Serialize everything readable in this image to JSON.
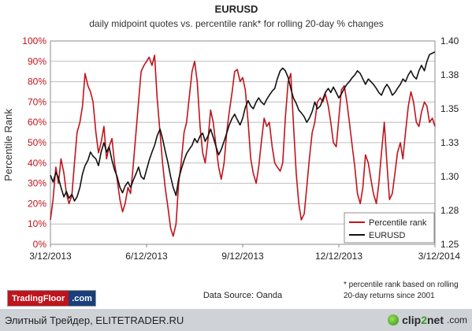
{
  "chart_data": {
    "type": "line",
    "title": "EURUSD",
    "subtitle": "daily midpoint quotes vs. percentile rank* for rolling 20-day % changes",
    "ylabel_left": "Percentile Rank",
    "left_axis": {
      "ylim": [
        0,
        100
      ],
      "ticks": [
        "0%",
        "10%",
        "20%",
        "30%",
        "40%",
        "50%",
        "60%",
        "70%",
        "80%",
        "90%",
        "100%"
      ]
    },
    "right_axis": {
      "ylim": [
        1.25,
        1.4
      ],
      "ticks": [
        "1.25",
        "1.28",
        "1.30",
        "1.33",
        "1.35",
        "1.38",
        "1.40"
      ],
      "tick_values": [
        1.25,
        1.275,
        1.3,
        1.325,
        1.35,
        1.375,
        1.4
      ]
    },
    "x_ticks": [
      "3/12/2013",
      "6/12/2013",
      "9/12/2013",
      "12/12/2013",
      "3/12/2014"
    ],
    "x_tick_months": [
      0,
      3,
      6,
      9,
      12
    ],
    "xlim_months": [
      0,
      12
    ],
    "grid": "horizontal",
    "legend_position": "bottom-right",
    "series": [
      {
        "name": "Percentile rank",
        "axis": "left",
        "color": "#c0141c",
        "points": [
          [
            0.0,
            12
          ],
          [
            0.08,
            22
          ],
          [
            0.17,
            38
          ],
          [
            0.25,
            30
          ],
          [
            0.33,
            42
          ],
          [
            0.42,
            35
          ],
          [
            0.5,
            25
          ],
          [
            0.58,
            20
          ],
          [
            0.67,
            24
          ],
          [
            0.75,
            40
          ],
          [
            0.83,
            55
          ],
          [
            0.92,
            60
          ],
          [
            1.0,
            68
          ],
          [
            1.08,
            84
          ],
          [
            1.17,
            78
          ],
          [
            1.25,
            75
          ],
          [
            1.33,
            70
          ],
          [
            1.42,
            55
          ],
          [
            1.5,
            45
          ],
          [
            1.58,
            50
          ],
          [
            1.67,
            58
          ],
          [
            1.75,
            42
          ],
          [
            1.83,
            48
          ],
          [
            1.92,
            52
          ],
          [
            2.0,
            40
          ],
          [
            2.08,
            32
          ],
          [
            2.17,
            22
          ],
          [
            2.25,
            16
          ],
          [
            2.33,
            20
          ],
          [
            2.42,
            28
          ],
          [
            2.5,
            25
          ],
          [
            2.58,
            38
          ],
          [
            2.67,
            55
          ],
          [
            2.75,
            70
          ],
          [
            2.83,
            85
          ],
          [
            2.92,
            88
          ],
          [
            3.0,
            90
          ],
          [
            3.08,
            92
          ],
          [
            3.17,
            88
          ],
          [
            3.25,
            93
          ],
          [
            3.33,
            72
          ],
          [
            3.42,
            55
          ],
          [
            3.5,
            40
          ],
          [
            3.58,
            28
          ],
          [
            3.67,
            18
          ],
          [
            3.75,
            8
          ],
          [
            3.83,
            4
          ],
          [
            3.92,
            10
          ],
          [
            4.0,
            30
          ],
          [
            4.08,
            40
          ],
          [
            4.17,
            55
          ],
          [
            4.25,
            60
          ],
          [
            4.33,
            72
          ],
          [
            4.42,
            85
          ],
          [
            4.5,
            90
          ],
          [
            4.58,
            80
          ],
          [
            4.67,
            58
          ],
          [
            4.75,
            45
          ],
          [
            4.83,
            40
          ],
          [
            4.92,
            52
          ],
          [
            5.0,
            66
          ],
          [
            5.08,
            60
          ],
          [
            5.17,
            48
          ],
          [
            5.25,
            38
          ],
          [
            5.33,
            32
          ],
          [
            5.42,
            40
          ],
          [
            5.5,
            55
          ],
          [
            5.58,
            65
          ],
          [
            5.67,
            75
          ],
          [
            5.75,
            85
          ],
          [
            5.83,
            86
          ],
          [
            5.92,
            80
          ],
          [
            6.0,
            82
          ],
          [
            6.08,
            76
          ],
          [
            6.17,
            60
          ],
          [
            6.25,
            42
          ],
          [
            6.33,
            35
          ],
          [
            6.42,
            30
          ],
          [
            6.5,
            38
          ],
          [
            6.58,
            50
          ],
          [
            6.67,
            62
          ],
          [
            6.75,
            58
          ],
          [
            6.83,
            60
          ],
          [
            6.92,
            48
          ],
          [
            7.0,
            40
          ],
          [
            7.08,
            38
          ],
          [
            7.17,
            36
          ],
          [
            7.25,
            40
          ],
          [
            7.33,
            62
          ],
          [
            7.42,
            80
          ],
          [
            7.5,
            84
          ],
          [
            7.58,
            60
          ],
          [
            7.67,
            35
          ],
          [
            7.75,
            20
          ],
          [
            7.83,
            12
          ],
          [
            7.92,
            15
          ],
          [
            8.0,
            28
          ],
          [
            8.08,
            42
          ],
          [
            8.17,
            55
          ],
          [
            8.25,
            60
          ],
          [
            8.33,
            70
          ],
          [
            8.42,
            72
          ],
          [
            8.5,
            70
          ],
          [
            8.58,
            74
          ],
          [
            8.67,
            68
          ],
          [
            8.75,
            60
          ],
          [
            8.83,
            50
          ],
          [
            8.92,
            48
          ],
          [
            9.0,
            62
          ],
          [
            9.08,
            76
          ],
          [
            9.17,
            78
          ],
          [
            9.25,
            70
          ],
          [
            9.33,
            60
          ],
          [
            9.42,
            48
          ],
          [
            9.5,
            38
          ],
          [
            9.58,
            25
          ],
          [
            9.67,
            20
          ],
          [
            9.75,
            28
          ],
          [
            9.83,
            44
          ],
          [
            9.92,
            40
          ],
          [
            10.0,
            32
          ],
          [
            10.08,
            25
          ],
          [
            10.17,
            20
          ],
          [
            10.25,
            30
          ],
          [
            10.33,
            45
          ],
          [
            10.42,
            60
          ],
          [
            10.5,
            40
          ],
          [
            10.58,
            22
          ],
          [
            10.67,
            25
          ],
          [
            10.75,
            35
          ],
          [
            10.83,
            45
          ],
          [
            10.92,
            50
          ],
          [
            11.0,
            42
          ],
          [
            11.08,
            55
          ],
          [
            11.17,
            68
          ],
          [
            11.25,
            75
          ],
          [
            11.33,
            70
          ],
          [
            11.42,
            60
          ],
          [
            11.5,
            58
          ],
          [
            11.58,
            65
          ],
          [
            11.67,
            70
          ],
          [
            11.75,
            68
          ],
          [
            11.83,
            60
          ],
          [
            11.92,
            62
          ],
          [
            12.0,
            58
          ]
        ]
      },
      {
        "name": "EURUSD",
        "axis": "right",
        "color": "#111111",
        "points": [
          [
            0.0,
            1.301
          ],
          [
            0.08,
            1.296
          ],
          [
            0.17,
            1.303
          ],
          [
            0.25,
            1.299
          ],
          [
            0.33,
            1.292
          ],
          [
            0.42,
            1.285
          ],
          [
            0.5,
            1.289
          ],
          [
            0.58,
            1.284
          ],
          [
            0.67,
            1.287
          ],
          [
            0.75,
            1.282
          ],
          [
            0.83,
            1.285
          ],
          [
            0.92,
            1.292
          ],
          [
            1.0,
            1.302
          ],
          [
            1.08,
            1.308
          ],
          [
            1.17,
            1.312
          ],
          [
            1.25,
            1.318
          ],
          [
            1.33,
            1.315
          ],
          [
            1.42,
            1.313
          ],
          [
            1.5,
            1.308
          ],
          [
            1.58,
            1.318
          ],
          [
            1.67,
            1.325
          ],
          [
            1.75,
            1.318
          ],
          [
            1.83,
            1.322
          ],
          [
            1.92,
            1.312
          ],
          [
            2.0,
            1.305
          ],
          [
            2.08,
            1.3
          ],
          [
            2.17,
            1.292
          ],
          [
            2.25,
            1.288
          ],
          [
            2.33,
            1.293
          ],
          [
            2.42,
            1.296
          ],
          [
            2.5,
            1.292
          ],
          [
            2.58,
            1.297
          ],
          [
            2.67,
            1.302
          ],
          [
            2.75,
            1.307
          ],
          [
            2.83,
            1.3
          ],
          [
            2.92,
            1.298
          ],
          [
            3.0,
            1.305
          ],
          [
            3.08,
            1.312
          ],
          [
            3.17,
            1.318
          ],
          [
            3.25,
            1.323
          ],
          [
            3.33,
            1.33
          ],
          [
            3.42,
            1.335
          ],
          [
            3.5,
            1.328
          ],
          [
            3.58,
            1.319
          ],
          [
            3.67,
            1.31
          ],
          [
            3.75,
            1.3
          ],
          [
            3.83,
            1.292
          ],
          [
            3.92,
            1.286
          ],
          [
            4.0,
            1.298
          ],
          [
            4.08,
            1.305
          ],
          [
            4.17,
            1.312
          ],
          [
            4.25,
            1.317
          ],
          [
            4.33,
            1.32
          ],
          [
            4.42,
            1.323
          ],
          [
            4.5,
            1.328
          ],
          [
            4.58,
            1.325
          ],
          [
            4.67,
            1.33
          ],
          [
            4.75,
            1.332
          ],
          [
            4.83,
            1.326
          ],
          [
            4.92,
            1.33
          ],
          [
            5.0,
            1.335
          ],
          [
            5.08,
            1.329
          ],
          [
            5.17,
            1.322
          ],
          [
            5.25,
            1.316
          ],
          [
            5.33,
            1.32
          ],
          [
            5.42,
            1.326
          ],
          [
            5.5,
            1.332
          ],
          [
            5.58,
            1.338
          ],
          [
            5.67,
            1.343
          ],
          [
            5.75,
            1.346
          ],
          [
            5.83,
            1.342
          ],
          [
            5.92,
            1.338
          ],
          [
            6.0,
            1.343
          ],
          [
            6.08,
            1.351
          ],
          [
            6.17,
            1.356
          ],
          [
            6.25,
            1.352
          ],
          [
            6.33,
            1.35
          ],
          [
            6.42,
            1.355
          ],
          [
            6.5,
            1.358
          ],
          [
            6.58,
            1.355
          ],
          [
            6.67,
            1.353
          ],
          [
            6.75,
            1.357
          ],
          [
            6.83,
            1.36
          ],
          [
            6.92,
            1.363
          ],
          [
            7.0,
            1.365
          ],
          [
            7.08,
            1.372
          ],
          [
            7.17,
            1.378
          ],
          [
            7.25,
            1.38
          ],
          [
            7.33,
            1.378
          ],
          [
            7.42,
            1.373
          ],
          [
            7.5,
            1.365
          ],
          [
            7.58,
            1.358
          ],
          [
            7.67,
            1.354
          ],
          [
            7.75,
            1.349
          ],
          [
            7.83,
            1.347
          ],
          [
            7.92,
            1.344
          ],
          [
            8.0,
            1.34
          ],
          [
            8.08,
            1.343
          ],
          [
            8.17,
            1.348
          ],
          [
            8.25,
            1.355
          ],
          [
            8.33,
            1.35
          ],
          [
            8.42,
            1.352
          ],
          [
            8.5,
            1.357
          ],
          [
            8.58,
            1.362
          ],
          [
            8.67,
            1.365
          ],
          [
            8.75,
            1.362
          ],
          [
            8.83,
            1.366
          ],
          [
            8.92,
            1.362
          ],
          [
            9.0,
            1.358
          ],
          [
            9.08,
            1.361
          ],
          [
            9.17,
            1.365
          ],
          [
            9.25,
            1.368
          ],
          [
            9.33,
            1.37
          ],
          [
            9.42,
            1.373
          ],
          [
            9.5,
            1.375
          ],
          [
            9.58,
            1.378
          ],
          [
            9.67,
            1.376
          ],
          [
            9.75,
            1.372
          ],
          [
            9.83,
            1.368
          ],
          [
            9.92,
            1.372
          ],
          [
            10.0,
            1.37
          ],
          [
            10.08,
            1.368
          ],
          [
            10.17,
            1.365
          ],
          [
            10.25,
            1.362
          ],
          [
            10.33,
            1.36
          ],
          [
            10.42,
            1.365
          ],
          [
            10.5,
            1.368
          ],
          [
            10.58,
            1.365
          ],
          [
            10.67,
            1.36
          ],
          [
            10.75,
            1.362
          ],
          [
            10.83,
            1.365
          ],
          [
            10.92,
            1.368
          ],
          [
            11.0,
            1.372
          ],
          [
            11.08,
            1.37
          ],
          [
            11.17,
            1.375
          ],
          [
            11.25,
            1.378
          ],
          [
            11.33,
            1.374
          ],
          [
            11.42,
            1.372
          ],
          [
            11.5,
            1.378
          ],
          [
            11.58,
            1.382
          ],
          [
            11.67,
            1.378
          ],
          [
            11.75,
            1.385
          ],
          [
            11.83,
            1.39
          ],
          [
            11.92,
            1.391
          ],
          [
            12.0,
            1.392
          ]
        ]
      }
    ]
  },
  "source": "Data Source:  Oanda",
  "footnote": [
    "* percentile rank based on rolling",
    "20-day returns since 2001"
  ],
  "brand": {
    "name": "TradingFloor",
    "tld": ".com"
  },
  "watermark": {
    "left": "Элитный Трейдер, ELITETRADER.RU",
    "logo_main": "clip",
    "logo_accent": "2",
    "logo_rest": "net",
    "logo_tld": ".com"
  }
}
